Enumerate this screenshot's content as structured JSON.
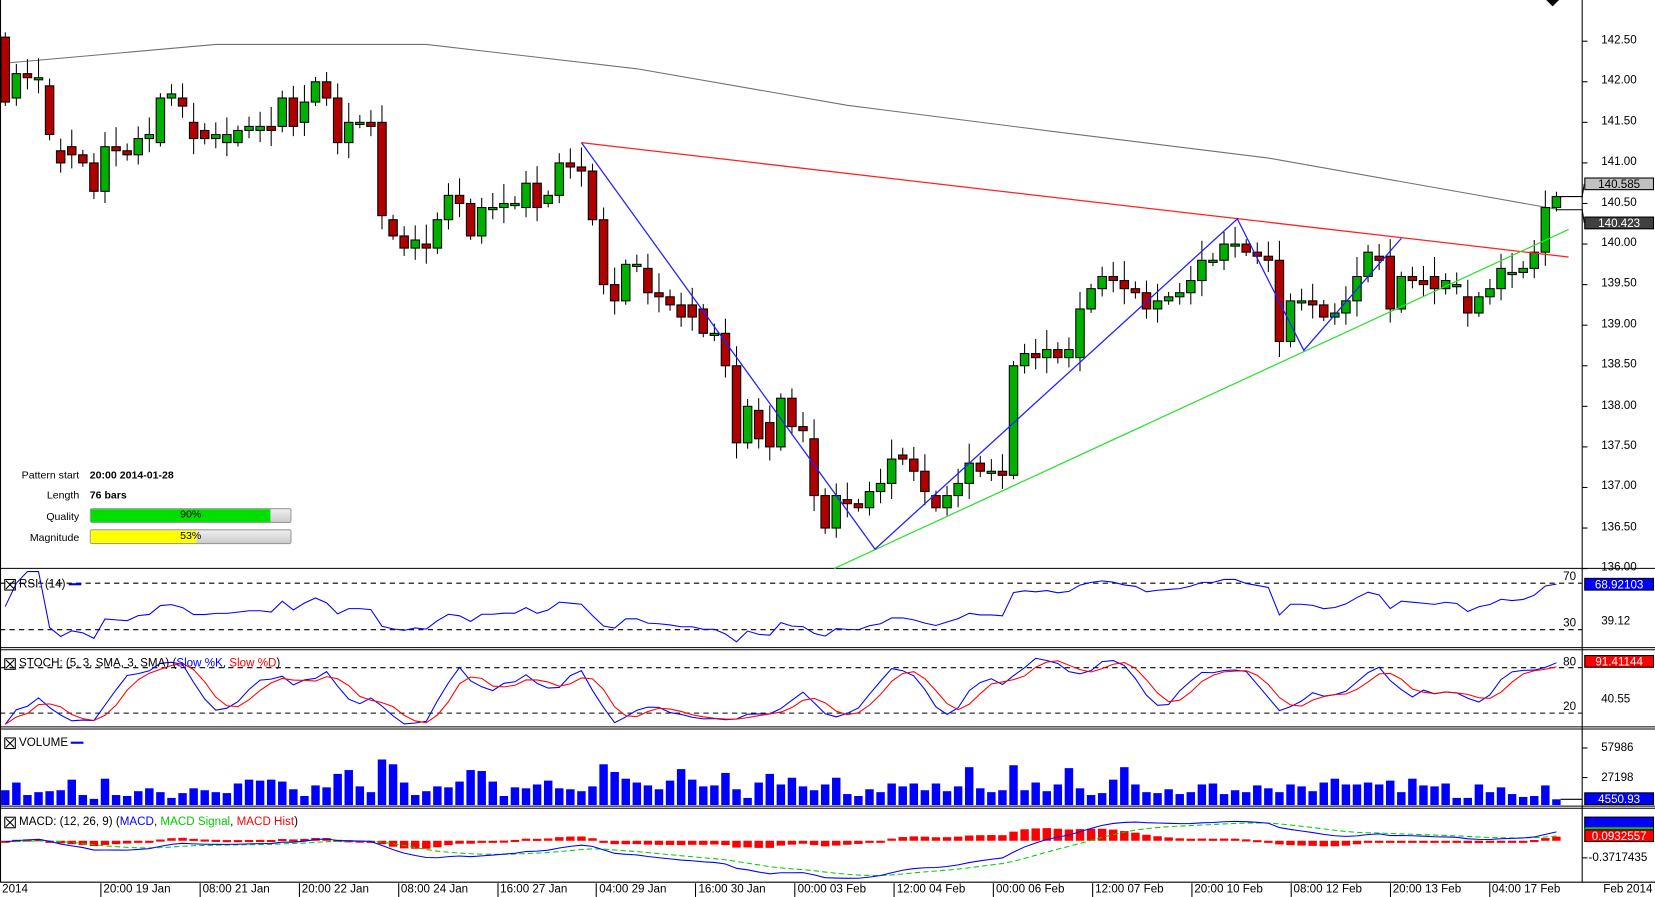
{
  "pattern_info": {
    "start_label": "Pattern start",
    "start_value": "20:00 2014-01-28",
    "length_label": "Length",
    "length_value": "76 bars",
    "quality_label": "Quality",
    "quality_value": "90%",
    "quality_pct": 90,
    "magnitude_label": "Magnitude",
    "magnitude_value": "53%",
    "magnitude_pct": 53
  },
  "colors": {
    "up": "#00b000",
    "down": "#b00000",
    "pattern_top": "#ff2020",
    "pattern_bottom": "#30e030",
    "zigzag": "#2020ff",
    "ma": "#707070"
  },
  "panels": {
    "rsi": {
      "title": "RSI: (14)",
      "level_high": "70",
      "level_low": "30",
      "value": "68.92103",
      "tick": "39.12"
    },
    "stoch": {
      "title_prefix": "STOCH: (5, 3, SMA, 3, SMA) (",
      "k_label": "Slow %K",
      "sep": ", ",
      "d_label": "Slow %D",
      "title_suffix": ")",
      "level_high": "80",
      "level_low": "20",
      "value": "91.41144",
      "tick": "40.55"
    },
    "volume": {
      "title": "VOLUME",
      "value": "4550.93",
      "ticks": [
        "57986",
        "27198"
      ]
    },
    "macd": {
      "title_prefix": "MACD: (12, 26, 9) (",
      "macd_label": "MACD",
      "sep1": ", ",
      "signal_label": "MACD Signal",
      "sep2": ", ",
      "hist_label": "MACD Hist",
      "title_suffix": ")",
      "value": "0.0932557",
      "tick": "-0.3717435"
    }
  },
  "price_tags": {
    "last": "140.585",
    "prev": "140.423"
  },
  "chart_data": {
    "type": "candlestick",
    "symbol_interval": "4h",
    "y_ticks": [
      "142.50",
      "142.00",
      "141.50",
      "141.00",
      "140.50",
      "140.00",
      "139.50",
      "139.00",
      "138.50",
      "138.00",
      "137.50",
      "137.00",
      "136.50",
      "136.00"
    ],
    "ylim": [
      136.0,
      142.5
    ],
    "x_labels": [
      "2014",
      "20:00 19 Jan",
      "08:00 21 Jan",
      "20:00 22 Jan",
      "08:00 24 Jan",
      "16:00 27 Jan",
      "04:00 29 Jan",
      "16:00 30 Jan",
      "00:00 03 Feb",
      "12:00 04 Feb",
      "00:00 06 Feb",
      "12:00 07 Feb",
      "20:00 10 Feb",
      "08:00 12 Feb",
      "20:00 13 Feb",
      "04:00 17 Feb"
    ],
    "x_label_right": "Feb 2014",
    "candles_oc": [
      [
        142.55,
        141.75
      ],
      [
        141.8,
        142.1
      ],
      [
        142.1,
        142.05
      ],
      [
        142.05,
        142.05
      ],
      [
        141.95,
        141.35
      ],
      [
        141.15,
        141.0
      ],
      [
        141.2,
        141.1
      ],
      [
        141.1,
        141.0
      ],
      [
        141.0,
        140.65
      ],
      [
        140.65,
        141.2
      ],
      [
        141.2,
        141.15
      ],
      [
        141.15,
        141.1
      ],
      [
        141.1,
        141.3
      ],
      [
        141.3,
        141.35
      ],
      [
        141.25,
        141.8
      ],
      [
        141.8,
        141.85
      ],
      [
        141.8,
        141.7
      ],
      [
        141.5,
        141.3
      ],
      [
        141.4,
        141.3
      ],
      [
        141.3,
        141.35
      ],
      [
        141.25,
        141.35
      ],
      [
        141.25,
        141.4
      ],
      [
        141.4,
        141.45
      ],
      [
        141.4,
        141.45
      ],
      [
        141.45,
        141.4
      ],
      [
        141.45,
        141.8
      ],
      [
        141.8,
        141.45
      ],
      [
        141.5,
        141.75
      ],
      [
        141.75,
        142.0
      ],
      [
        142.0,
        141.8
      ],
      [
        141.8,
        141.25
      ],
      [
        141.25,
        141.5
      ],
      [
        141.5,
        141.5
      ],
      [
        141.5,
        141.45
      ],
      [
        141.5,
        140.35
      ],
      [
        140.3,
        140.1
      ],
      [
        140.1,
        139.95
      ],
      [
        139.95,
        140.05
      ],
      [
        140.0,
        139.95
      ],
      [
        139.95,
        140.3
      ],
      [
        140.3,
        140.6
      ],
      [
        140.6,
        140.5
      ],
      [
        140.5,
        140.1
      ],
      [
        140.1,
        140.45
      ],
      [
        140.45,
        140.45
      ],
      [
        140.45,
        140.5
      ],
      [
        140.5,
        140.5
      ],
      [
        140.45,
        140.75
      ],
      [
        140.75,
        140.45
      ],
      [
        140.5,
        140.6
      ],
      [
        140.6,
        141.0
      ],
      [
        141.0,
        140.95
      ],
      [
        140.95,
        140.9
      ],
      [
        140.9,
        140.3
      ],
      [
        140.3,
        139.5
      ],
      [
        139.5,
        139.3
      ],
      [
        139.3,
        139.75
      ],
      [
        139.75,
        139.75
      ],
      [
        139.7,
        139.4
      ],
      [
        139.4,
        139.35
      ],
      [
        139.35,
        139.25
      ],
      [
        139.25,
        139.1
      ],
      [
        139.25,
        139.1
      ],
      [
        139.2,
        138.9
      ],
      [
        138.9,
        138.9
      ],
      [
        138.9,
        138.5
      ],
      [
        138.5,
        137.55
      ],
      [
        137.55,
        138.0
      ],
      [
        137.95,
        137.6
      ],
      [
        137.8,
        137.5
      ],
      [
        137.5,
        138.1
      ],
      [
        138.1,
        137.75
      ],
      [
        137.75,
        137.7
      ],
      [
        137.6,
        136.9
      ],
      [
        136.9,
        136.5
      ],
      [
        136.5,
        136.9
      ],
      [
        136.85,
        136.8
      ],
      [
        136.8,
        136.75
      ],
      [
        136.75,
        136.95
      ],
      [
        136.95,
        137.05
      ],
      [
        137.05,
        137.35
      ],
      [
        137.4,
        137.35
      ],
      [
        137.35,
        137.2
      ],
      [
        137.2,
        136.95
      ],
      [
        136.9,
        136.75
      ],
      [
        136.75,
        136.9
      ],
      [
        136.9,
        137.05
      ],
      [
        137.05,
        137.3
      ],
      [
        137.3,
        137.2
      ],
      [
        137.2,
        137.2
      ],
      [
        137.2,
        137.15
      ],
      [
        137.15,
        138.5
      ],
      [
        138.5,
        138.65
      ],
      [
        138.65,
        138.6
      ],
      [
        138.6,
        138.7
      ],
      [
        138.7,
        138.6
      ],
      [
        138.6,
        138.7
      ],
      [
        138.6,
        139.2
      ],
      [
        139.2,
        139.45
      ],
      [
        139.45,
        139.6
      ],
      [
        139.6,
        139.55
      ],
      [
        139.55,
        139.45
      ],
      [
        139.45,
        139.4
      ],
      [
        139.4,
        139.2
      ],
      [
        139.2,
        139.3
      ],
      [
        139.3,
        139.35
      ],
      [
        139.35,
        139.4
      ],
      [
        139.4,
        139.55
      ],
      [
        139.55,
        139.8
      ],
      [
        139.8,
        139.8
      ],
      [
        139.8,
        140.0
      ],
      [
        140.0,
        140.0
      ],
      [
        140.0,
        139.9
      ],
      [
        139.9,
        139.85
      ],
      [
        139.85,
        139.8
      ],
      [
        139.8,
        138.8
      ],
      [
        138.8,
        139.3
      ],
      [
        139.3,
        139.3
      ],
      [
        139.3,
        139.25
      ],
      [
        139.25,
        139.1
      ],
      [
        139.1,
        139.15
      ],
      [
        139.15,
        139.3
      ],
      [
        139.3,
        139.6
      ],
      [
        139.6,
        139.9
      ],
      [
        139.85,
        139.8
      ],
      [
        139.85,
        139.2
      ],
      [
        139.2,
        139.6
      ],
      [
        139.6,
        139.55
      ],
      [
        139.55,
        139.5
      ],
      [
        139.6,
        139.45
      ],
      [
        139.45,
        139.55
      ],
      [
        139.5,
        139.5
      ],
      [
        139.35,
        139.15
      ],
      [
        139.15,
        139.35
      ],
      [
        139.35,
        139.45
      ],
      [
        139.45,
        139.7
      ],
      [
        139.65,
        139.65
      ],
      [
        139.65,
        139.7
      ],
      [
        139.7,
        139.9
      ],
      [
        139.9,
        140.45
      ],
      [
        140.45,
        140.585
      ]
    ],
    "volume": [
      14000,
      22000,
      9000,
      12000,
      13000,
      14000,
      25000,
      9000,
      5000,
      26000,
      9000,
      8000,
      13000,
      16000,
      12000,
      6000,
      11000,
      16000,
      14000,
      12000,
      11000,
      21000,
      25000,
      24000,
      25000,
      23000,
      15000,
      8000,
      19000,
      17000,
      31000,
      35000,
      18000,
      12000,
      46000,
      41000,
      22000,
      9000,
      13000,
      18000,
      17000,
      23000,
      35000,
      34000,
      23000,
      8000,
      17000,
      16000,
      20000,
      24000,
      16000,
      15000,
      13000,
      18000,
      41000,
      33000,
      26000,
      22000,
      19000,
      15000,
      24000,
      36000,
      25000,
      18000,
      19000,
      32000,
      15000,
      6000,
      22000,
      31000,
      20000,
      27000,
      18000,
      14000,
      20000,
      27000,
      10000,
      8000,
      15000,
      12000,
      21000,
      18000,
      21000,
      14000,
      21000,
      13000,
      18000,
      38000,
      16000,
      12000,
      14000,
      40000,
      14000,
      22000,
      13000,
      20000,
      37000,
      16000,
      9000,
      11000,
      25000,
      38000,
      20000,
      12000,
      11000,
      15000,
      10000,
      12000,
      20000,
      21000,
      10000,
      14000,
      12000,
      19000,
      16000,
      12000,
      20000,
      18000,
      13000,
      22000,
      26000,
      20000,
      20000,
      22000,
      20000,
      24000,
      12000,
      26000,
      19000,
      18000,
      21000,
      6000,
      6000,
      20000,
      12000,
      17000,
      10000,
      7000,
      8000,
      19000,
      4550.93
    ],
    "ma_points": [
      [
        0,
        142.23
      ],
      [
        19,
        142.46
      ],
      [
        38,
        142.46
      ],
      [
        57,
        142.16
      ],
      [
        76,
        141.71
      ],
      [
        95,
        141.38
      ],
      [
        114,
        141.06
      ],
      [
        133,
        140.6
      ],
      [
        140,
        140.43
      ]
    ],
    "pattern_top_line": [
      [
        52,
        141.25
      ],
      [
        141.1,
        139.84
      ]
    ],
    "pattern_bottom_line": [
      [
        74.8,
        136.0
      ],
      [
        141.1,
        140.18
      ]
    ],
    "zigzag": [
      [
        52,
        141.25
      ],
      [
        78.5,
        136.24
      ],
      [
        111.2,
        140.31
      ],
      [
        117.2,
        138.69
      ],
      [
        126,
        140.07
      ]
    ]
  }
}
